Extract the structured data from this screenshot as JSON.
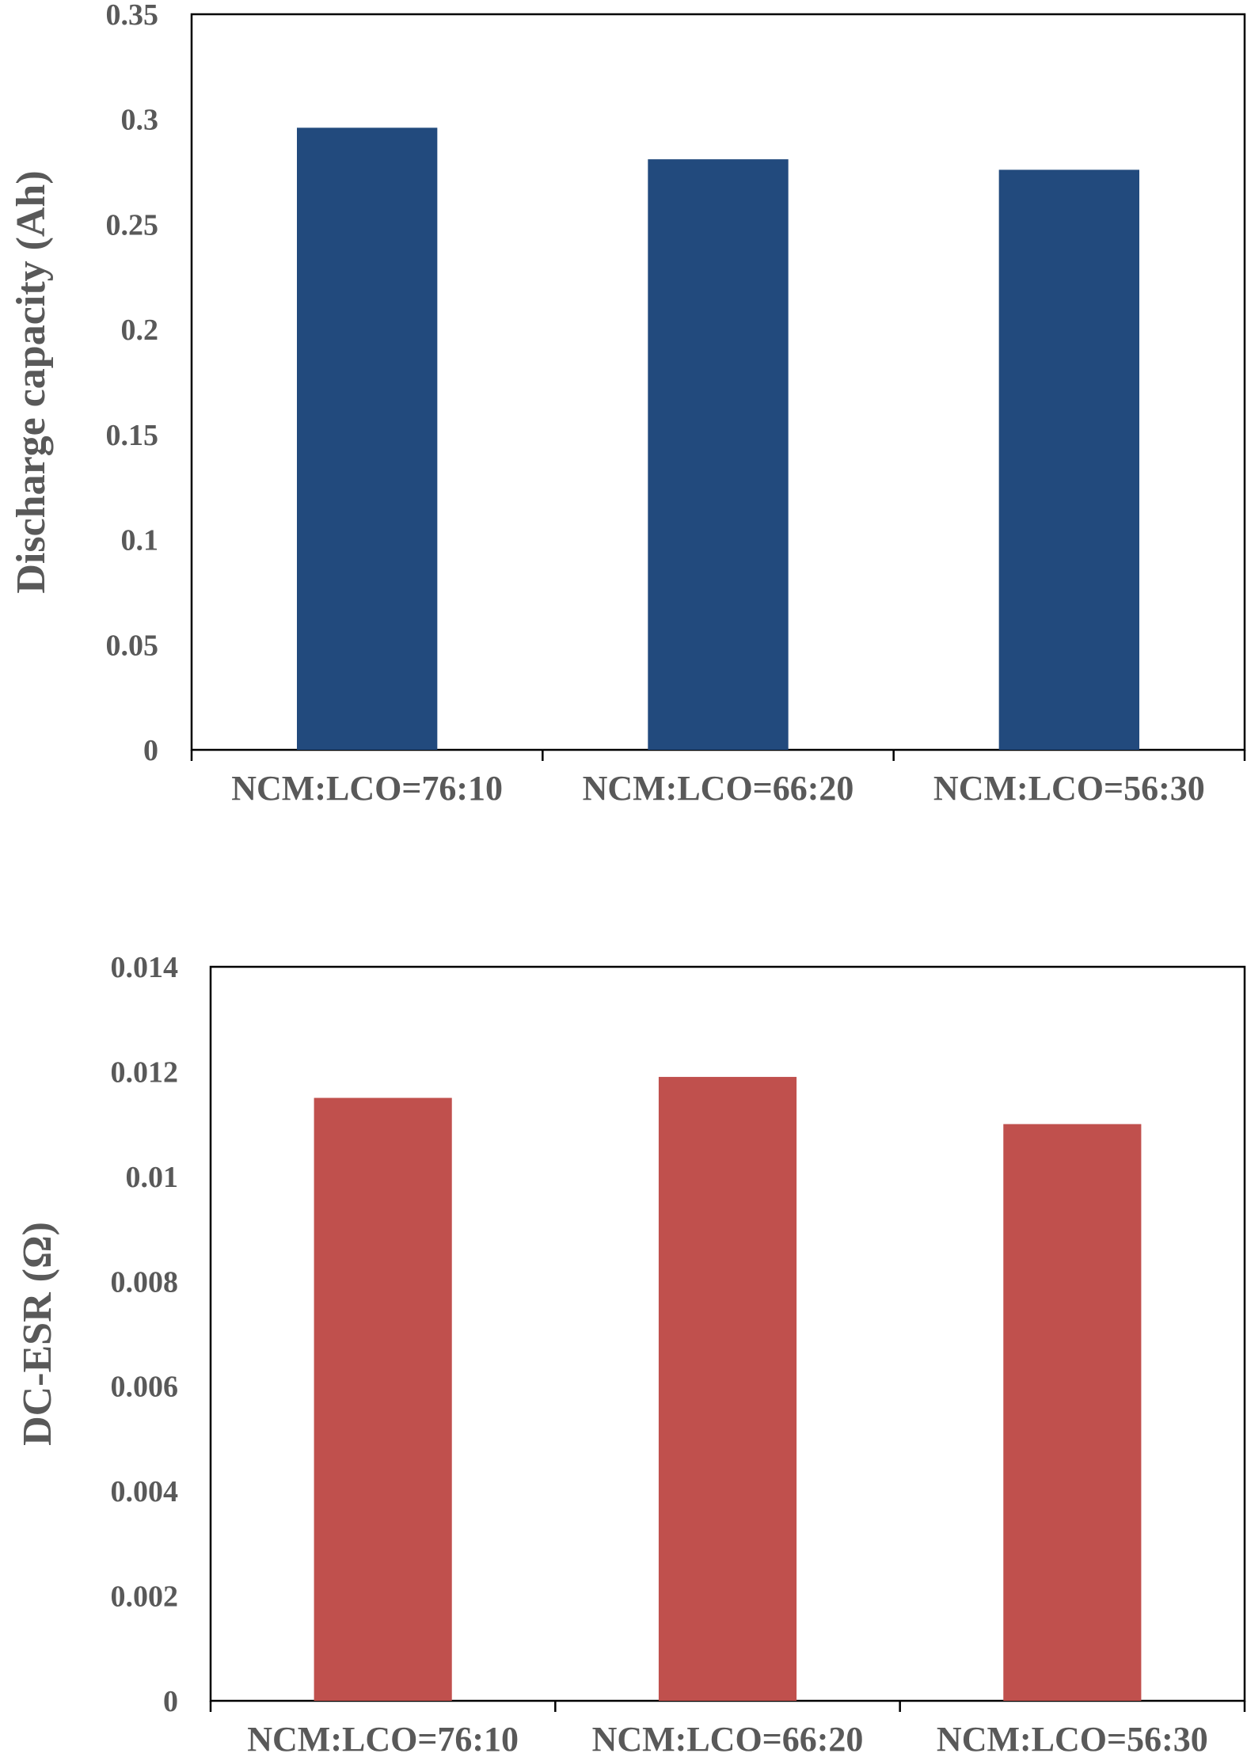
{
  "chart_data": [
    {
      "type": "bar",
      "categories": [
        "NCM:LCO=76:10",
        "NCM:LCO=66:20",
        "NCM:LCO=56:30"
      ],
      "values": [
        0.296,
        0.281,
        0.276
      ],
      "xlabel": "",
      "ylabel": "Discharge capacity (Ah)",
      "ylim": [
        0,
        0.35
      ],
      "yticks": [
        "0",
        "0.05",
        "0.1",
        "0.15",
        "0.2",
        "0.25",
        "0.3",
        "0.35"
      ],
      "color": "#224a7d",
      "grid": false,
      "legend": "none"
    },
    {
      "type": "bar",
      "categories": [
        "NCM:LCO=76:10",
        "NCM:LCO=66:20",
        "NCM:LCO=56:30"
      ],
      "values": [
        0.0115,
        0.0119,
        0.011
      ],
      "xlabel": "",
      "ylabel": "DC-ESR (Ω)",
      "ylim": [
        0,
        0.014
      ],
      "yticks": [
        "0",
        "0.002",
        "0.004",
        "0.006",
        "0.008",
        "0.01",
        "0.012",
        "0.014"
      ],
      "color": "#c0504d",
      "grid": false,
      "legend": "none"
    }
  ]
}
